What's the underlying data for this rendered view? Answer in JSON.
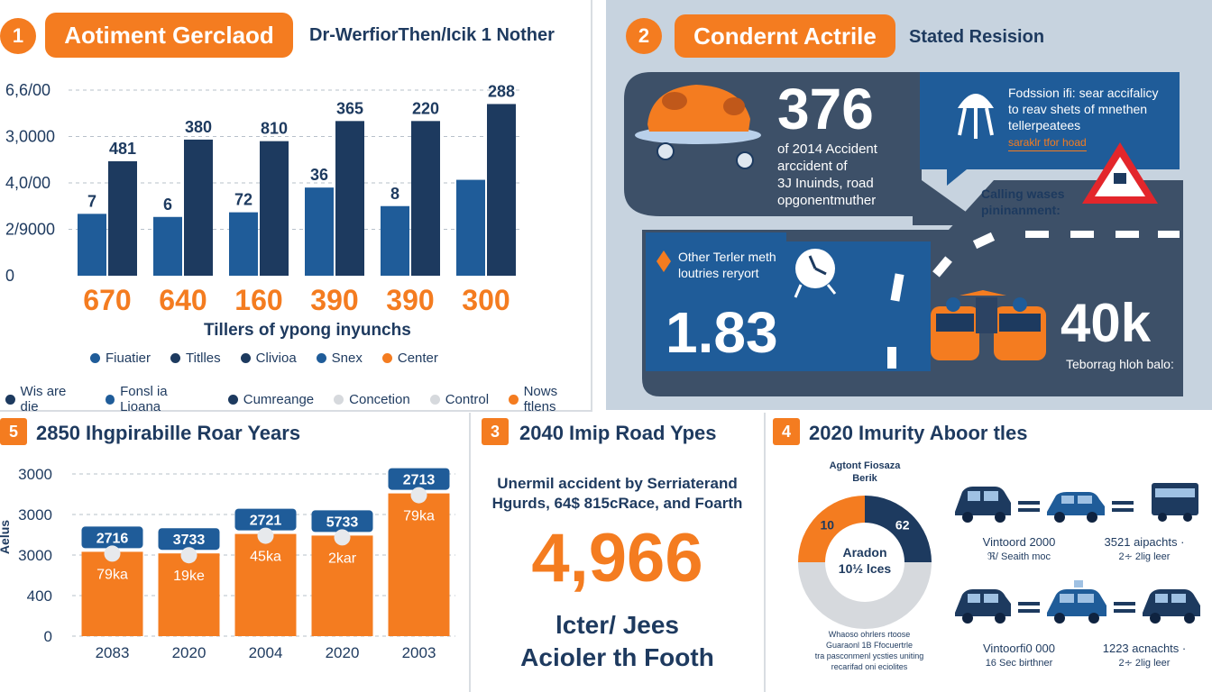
{
  "colors": {
    "navy": "#1d3a5f",
    "blue": "#1f5c99",
    "orange": "#f47c20",
    "slate": "#46586e",
    "panel_bg": "#c7d3df",
    "grey": "#d6d9dd"
  },
  "panel1": {
    "badge": "1",
    "title": "Aotiment Gerclaod",
    "subtitle": "Dr-WerfiorThen/Icik 1 Nother",
    "y_ticks": [
      "6,6/00",
      "3,0000",
      "4,0/00",
      "2/9000",
      "0"
    ],
    "xlabel": "Tillers of ypong inyunchs",
    "legend_row1": [
      "Fiuatier",
      "Titlles",
      "Clivioa",
      "Snex",
      "Center"
    ],
    "legend_row2": [
      "Wis are die",
      "Fonsl ia Lioana",
      "Cumreange",
      "Concetion",
      "Control",
      "Nows ftlens"
    ]
  },
  "panel2": {
    "badge": "2",
    "title": "Condernt Actrile",
    "subtitle": "Stated Resision",
    "big_stat": "376",
    "stat_text": [
      "of 2014 Accident",
      "arccident of",
      "3J Inuinds, road",
      "opgonentmuther"
    ],
    "callout_text": [
      "Fodssion ifi: sear accifalicy",
      "to reav shets of mnethen",
      "tellerpeatees"
    ],
    "callout_highlight": "saraklr tfor hoad",
    "side_text": [
      "Calling wases",
      "pininanment:"
    ],
    "other_text": [
      "Other Terler meth",
      "loutries reryort"
    ],
    "left_stat": "1.83",
    "right_stat": "40k",
    "right_caption": "Teborrag hloh balo:"
  },
  "panel5": {
    "badge": "5",
    "title": "2850 Ihgpirabille Roar Years",
    "axis_label": "Aelus",
    "y_ticks": [
      "3000",
      "3000",
      "3000",
      "400",
      "0"
    ]
  },
  "panel3": {
    "badge": "3",
    "title": "2040 Imip Road Ypes",
    "desc_line1": "Unermil accident by Serriaterand",
    "desc_line2": "Hgurds, 64$ 815cRace, and Foarth",
    "big_number": "4,966",
    "foot_line1": "lcter/ Jees",
    "foot_line2": "Acioler th Footh"
  },
  "panel4": {
    "badge": "4",
    "title": "2020 Imurity Aboor tles",
    "donut_title_1": "Agtont Fiosaza",
    "donut_title_2": "Berik",
    "donut_left": "10",
    "donut_right": "62",
    "donut_center_1": "Aradon",
    "donut_center_2": "10½ lces",
    "donut_foot": [
      "Whaoso ohrlers rtoose",
      "Guaraonl 1B Ffocuertrle",
      "tra pasconmenl ycsties uniting",
      "recarifad oni eciolites"
    ],
    "row1_left_1": "Vintoord 2000",
    "row1_left_2": "ℜ/ Seaith moc",
    "row1_right_1": "3521 aipachts ·",
    "row1_right_2": "2∻ 2lig leer",
    "row2_left_1": "Vintoorfi0 000",
    "row2_left_2": "16 Sec birthner",
    "row2_right_1": "1223 acnachts ·",
    "row2_right_2": "2∻ 2lig leer"
  },
  "chart_data": [
    {
      "type": "bar",
      "title": "Aotiment Gerclaod",
      "xlabel": "Tillers of ypong inyunchs",
      "categories": [
        "670",
        "640",
        "160",
        "390",
        "390",
        "300"
      ],
      "series": [
        {
          "values": [
            2000,
            1900,
            2050,
            2850,
            2250,
            3100
          ],
          "labels": [
            "7",
            "6",
            "72",
            "36",
            "8",
            ""
          ]
        },
        {
          "values": [
            3700,
            4400,
            4350,
            5000,
            5000,
            5550
          ],
          "labels": [
            "481",
            "380",
            "810",
            "365",
            "220",
            "288"
          ]
        }
      ],
      "ylim": [
        0,
        6000
      ]
    },
    {
      "type": "bar",
      "title": "2850 Ihgpirabille Roar Years",
      "categories": [
        "2083",
        "2020",
        "2004",
        "2020",
        "2003"
      ],
      "values": [
        2716,
        3733,
        2721,
        5733,
        2713
      ],
      "bar_labels": [
        "79ka",
        "19ke",
        "45ka",
        "2kar",
        "79ka"
      ],
      "bar_heights": [
        0.52,
        0.51,
        0.63,
        0.62,
        0.88
      ],
      "ylabel": "Aelus"
    },
    {
      "type": "pie",
      "title": "Agtont Fiosaza Berik",
      "slices": [
        {
          "label": "10",
          "value": 25,
          "color": "#f47c20"
        },
        {
          "label": "62",
          "value": 25,
          "color": "#1d3a5f"
        },
        {
          "label": "",
          "value": 50,
          "color": "#d6d9dd"
        }
      ]
    }
  ]
}
